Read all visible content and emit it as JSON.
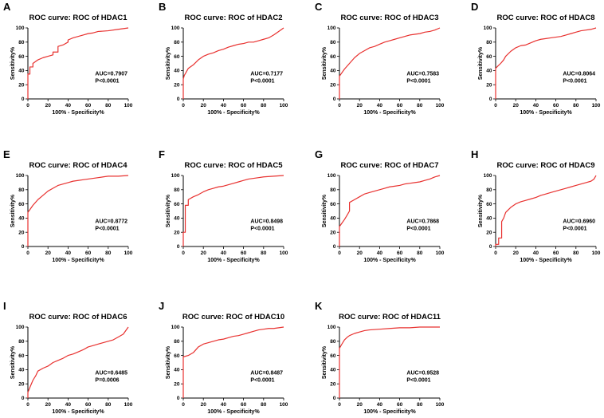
{
  "chart_data": [
    {
      "type": "line",
      "panel_letter": "A",
      "title": "ROC curve: ROC of HDAC1",
      "xlabel": "100% - Specificity%",
      "ylabel": "Sensitivity%",
      "xlim": [
        0,
        100
      ],
      "ylim": [
        0,
        100
      ],
      "xticks": [
        "0",
        "20",
        "40",
        "60",
        "80",
        "100"
      ],
      "yticks": [
        "0",
        "20",
        "40",
        "60",
        "80",
        "100"
      ],
      "auc_label": "AUC=0.7907",
      "p_label": "P<0.0001",
      "series": [
        {
          "name": "ROC",
          "color": "#e8312f",
          "x": [
            0,
            0,
            2,
            2,
            5,
            5,
            10,
            15,
            20,
            25,
            25,
            30,
            30,
            35,
            40,
            40,
            45,
            50,
            55,
            60,
            65,
            70,
            80,
            90,
            100
          ],
          "y": [
            0,
            35,
            35,
            45,
            45,
            50,
            55,
            58,
            60,
            62,
            66,
            66,
            74,
            76,
            80,
            83,
            86,
            88,
            90,
            92,
            93,
            95,
            96,
            98,
            100
          ]
        }
      ]
    },
    {
      "type": "line",
      "panel_letter": "B",
      "title": "ROC curve: ROC of HDAC2",
      "xlabel": "100% - Specificity%",
      "ylabel": "Sensitivity%",
      "xlim": [
        0,
        100
      ],
      "ylim": [
        0,
        100
      ],
      "xticks": [
        "0",
        "20",
        "40",
        "60",
        "80",
        "100"
      ],
      "yticks": [
        "0",
        "20",
        "40",
        "60",
        "80",
        "100"
      ],
      "auc_label": "AUC=0.7177",
      "p_label": "P<0.0001",
      "series": [
        {
          "name": "ROC",
          "color": "#e8312f",
          "x": [
            0,
            0,
            1,
            3,
            5,
            10,
            15,
            20,
            25,
            30,
            35,
            40,
            45,
            50,
            55,
            60,
            65,
            70,
            75,
            80,
            85,
            90,
            95,
            100
          ],
          "y": [
            0,
            28,
            33,
            38,
            43,
            48,
            55,
            60,
            63,
            65,
            68,
            70,
            73,
            75,
            77,
            78,
            80,
            80,
            82,
            84,
            86,
            90,
            95,
            100
          ]
        }
      ]
    },
    {
      "type": "line",
      "panel_letter": "C",
      "title": "ROC curve: ROC of HDAC3",
      "xlabel": "100% - Specificity%",
      "ylabel": "Sensitivity%",
      "xlim": [
        0,
        100
      ],
      "ylim": [
        0,
        100
      ],
      "xticks": [
        "0",
        "20",
        "40",
        "60",
        "80",
        "100"
      ],
      "yticks": [
        "0",
        "20",
        "40",
        "60",
        "80",
        "100"
      ],
      "auc_label": "AUC=0.7583",
      "p_label": "P<0.0001",
      "series": [
        {
          "name": "ROC",
          "color": "#e8312f",
          "x": [
            0,
            0,
            2,
            5,
            10,
            15,
            20,
            25,
            30,
            35,
            40,
            45,
            50,
            55,
            60,
            65,
            70,
            75,
            80,
            85,
            90,
            95,
            100
          ],
          "y": [
            0,
            32,
            36,
            42,
            50,
            58,
            64,
            68,
            72,
            74,
            77,
            80,
            82,
            84,
            86,
            88,
            90,
            91,
            92,
            94,
            95,
            97,
            100
          ]
        }
      ]
    },
    {
      "type": "line",
      "panel_letter": "D",
      "title": "ROC curve: ROC of HDAC8",
      "xlabel": "100% - Specificity%",
      "ylabel": "Sensitivity%",
      "xlim": [
        0,
        100
      ],
      "ylim": [
        0,
        100
      ],
      "xticks": [
        "0",
        "20",
        "40",
        "60",
        "80",
        "100"
      ],
      "yticks": [
        "0",
        "20",
        "40",
        "60",
        "80",
        "100"
      ],
      "auc_label": "AUC=0.8064",
      "p_label": "P<0.0001",
      "series": [
        {
          "name": "ROC",
          "color": "#e8312f",
          "x": [
            0,
            0,
            2,
            5,
            8,
            10,
            15,
            20,
            25,
            30,
            35,
            40,
            45,
            50,
            55,
            60,
            65,
            70,
            75,
            80,
            85,
            90,
            95,
            100
          ],
          "y": [
            0,
            43,
            46,
            50,
            55,
            60,
            67,
            72,
            75,
            76,
            79,
            82,
            84,
            85,
            86,
            87,
            88,
            90,
            92,
            94,
            96,
            97,
            98,
            100
          ]
        }
      ]
    },
    {
      "type": "line",
      "panel_letter": "E",
      "title": "ROC curve: ROC of HDAC4",
      "xlabel": "100% - Specificity%",
      "ylabel": "Sensitivity%",
      "xlim": [
        0,
        100
      ],
      "ylim": [
        0,
        100
      ],
      "xticks": [
        "0",
        "20",
        "40",
        "60",
        "80",
        "100"
      ],
      "yticks": [
        "0",
        "20",
        "40",
        "60",
        "80",
        "100"
      ],
      "auc_label": "AUC=0.8772",
      "p_label": "P<0.0001",
      "series": [
        {
          "name": "ROC",
          "color": "#e8312f",
          "x": [
            0,
            0,
            2,
            5,
            10,
            15,
            20,
            25,
            30,
            35,
            40,
            45,
            50,
            55,
            60,
            65,
            70,
            75,
            80,
            90,
            100
          ],
          "y": [
            0,
            48,
            52,
            58,
            66,
            72,
            78,
            82,
            86,
            88,
            90,
            92,
            93,
            94,
            95,
            96,
            97,
            98,
            99,
            99,
            100
          ]
        }
      ]
    },
    {
      "type": "line",
      "panel_letter": "F",
      "title": "ROC curve: ROC of HDAC5",
      "xlabel": "100% - Specificity%",
      "ylabel": "Sensitivity%",
      "xlim": [
        0,
        100
      ],
      "ylim": [
        0,
        100
      ],
      "xticks": [
        "0",
        "20",
        "40",
        "60",
        "80",
        "100"
      ],
      "yticks": [
        "0",
        "20",
        "40",
        "60",
        "80",
        "100"
      ],
      "auc_label": "AUC=0.8498",
      "p_label": "P<0.0001",
      "series": [
        {
          "name": "ROC",
          "color": "#e8312f",
          "x": [
            0,
            0,
            2,
            2,
            5,
            5,
            10,
            15,
            20,
            25,
            30,
            35,
            40,
            45,
            50,
            55,
            60,
            65,
            70,
            75,
            80,
            90,
            100
          ],
          "y": [
            0,
            20,
            20,
            58,
            58,
            66,
            70,
            73,
            77,
            80,
            82,
            84,
            85,
            87,
            89,
            91,
            93,
            95,
            96,
            97,
            98,
            99,
            100
          ]
        }
      ]
    },
    {
      "type": "line",
      "panel_letter": "G",
      "title": "ROC curve: ROC of HDAC7",
      "xlabel": "100% - Specificity%",
      "ylabel": "Sensitivity%",
      "xlim": [
        0,
        100
      ],
      "ylim": [
        0,
        100
      ],
      "xticks": [
        "0",
        "20",
        "40",
        "60",
        "80",
        "100"
      ],
      "yticks": [
        "0",
        "20",
        "40",
        "60",
        "80",
        "100"
      ],
      "auc_label": "AUC=0.7868",
      "p_label": "P<0.0001",
      "series": [
        {
          "name": "ROC",
          "color": "#e8312f",
          "x": [
            0,
            0,
            2,
            5,
            8,
            10,
            10,
            15,
            20,
            25,
            30,
            35,
            40,
            45,
            50,
            55,
            60,
            65,
            70,
            75,
            80,
            85,
            90,
            95,
            100
          ],
          "y": [
            0,
            28,
            32,
            38,
            45,
            50,
            62,
            66,
            70,
            74,
            76,
            78,
            80,
            82,
            84,
            85,
            86,
            88,
            89,
            90,
            91,
            93,
            95,
            98,
            100
          ]
        }
      ]
    },
    {
      "type": "line",
      "panel_letter": "H",
      "title": "ROC curve: ROC of HDAC9",
      "xlabel": "100% - Specificity%",
      "ylabel": "Sensitivity%",
      "xlim": [
        0,
        100
      ],
      "ylim": [
        0,
        100
      ],
      "xticks": [
        "0",
        "20",
        "40",
        "60",
        "80",
        "100"
      ],
      "yticks": [
        "0",
        "20",
        "40",
        "60",
        "80",
        "100"
      ],
      "auc_label": "AUC=0.6960",
      "p_label": "P<0.0001",
      "series": [
        {
          "name": "ROC",
          "color": "#e8312f",
          "x": [
            0,
            0,
            3,
            3,
            6,
            6,
            8,
            10,
            15,
            20,
            25,
            30,
            35,
            40,
            45,
            50,
            55,
            60,
            65,
            70,
            75,
            80,
            85,
            90,
            95,
            98,
            100
          ],
          "y": [
            0,
            3,
            3,
            12,
            12,
            35,
            40,
            48,
            55,
            60,
            63,
            65,
            67,
            69,
            72,
            74,
            76,
            78,
            80,
            82,
            84,
            86,
            88,
            90,
            92,
            95,
            100
          ]
        }
      ]
    },
    {
      "type": "line",
      "panel_letter": "I",
      "title": "ROC curve: ROC of HDAC6",
      "xlabel": "100% - Specificity%",
      "ylabel": "Sensitivity%",
      "xlim": [
        0,
        100
      ],
      "ylim": [
        0,
        100
      ],
      "xticks": [
        "0",
        "20",
        "40",
        "60",
        "80",
        "100"
      ],
      "yticks": [
        "0",
        "20",
        "40",
        "60",
        "80",
        "100"
      ],
      "auc_label": "AUC=0.6485",
      "p_label": "P=0.0006",
      "series": [
        {
          "name": "ROC",
          "color": "#e8312f",
          "x": [
            0,
            0,
            2,
            5,
            8,
            10,
            15,
            20,
            25,
            30,
            35,
            40,
            45,
            50,
            55,
            60,
            65,
            70,
            75,
            80,
            85,
            90,
            95,
            100
          ],
          "y": [
            0,
            8,
            15,
            25,
            32,
            38,
            42,
            45,
            50,
            53,
            56,
            60,
            62,
            65,
            68,
            72,
            74,
            76,
            78,
            80,
            82,
            86,
            90,
            100
          ]
        }
      ]
    },
    {
      "type": "line",
      "panel_letter": "J",
      "title": "ROC curve: ROC of HDAC10",
      "xlabel": "100% - Specificity%",
      "ylabel": "Sensitivity%",
      "xlim": [
        0,
        100
      ],
      "ylim": [
        0,
        100
      ],
      "xticks": [
        "0",
        "20",
        "40",
        "60",
        "80",
        "100"
      ],
      "yticks": [
        "0",
        "20",
        "40",
        "60",
        "80",
        "100"
      ],
      "auc_label": "AUC=0.8487",
      "p_label": "P<0.0001",
      "series": [
        {
          "name": "ROC",
          "color": "#e8312f",
          "x": [
            0,
            0,
            5,
            10,
            15,
            20,
            25,
            30,
            35,
            40,
            45,
            50,
            55,
            60,
            65,
            70,
            75,
            80,
            85,
            90,
            95,
            100
          ],
          "y": [
            0,
            58,
            60,
            64,
            72,
            76,
            78,
            80,
            82,
            83,
            85,
            87,
            88,
            90,
            92,
            94,
            96,
            97,
            98,
            98,
            99,
            100
          ]
        }
      ]
    },
    {
      "type": "line",
      "panel_letter": "K",
      "title": "ROC curve: ROC of HDAC11",
      "xlabel": "100% - Specificity%",
      "ylabel": "Sensitivity%",
      "xlim": [
        0,
        100
      ],
      "ylim": [
        0,
        100
      ],
      "xticks": [
        "0",
        "20",
        "40",
        "60",
        "80",
        "100"
      ],
      "yticks": [
        "0",
        "20",
        "40",
        "60",
        "80",
        "100"
      ],
      "auc_label": "AUC=0.9528",
      "p_label": "P<0.0001",
      "series": [
        {
          "name": "ROC",
          "color": "#e8312f",
          "x": [
            0,
            0,
            2,
            5,
            8,
            10,
            15,
            20,
            25,
            30,
            40,
            50,
            60,
            70,
            80,
            90,
            100
          ],
          "y": [
            0,
            70,
            75,
            82,
            86,
            88,
            91,
            93,
            95,
            96,
            97,
            98,
            99,
            99,
            100,
            100,
            100
          ]
        }
      ]
    }
  ]
}
